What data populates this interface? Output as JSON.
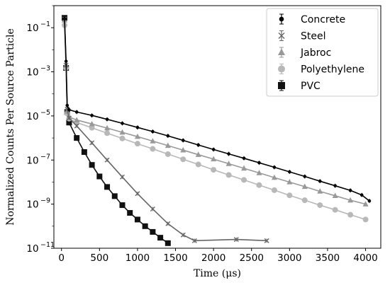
{
  "chart_data": {
    "type": "scatter",
    "xlabel": "Time (μs)",
    "ylabel": "Normalized Counts Per Source Particle",
    "xlim": [
      -100,
      4200
    ],
    "ylim": [
      1e-11,
      1
    ],
    "yscale": "log",
    "x_ticks": [
      0,
      500,
      1000,
      1500,
      2000,
      2500,
      3000,
      3500,
      4000
    ],
    "y_ticks": [
      {
        "base": "10",
        "exp": "−1",
        "value": 0.1
      },
      {
        "base": "10",
        "exp": "−3",
        "value": 0.001
      },
      {
        "base": "10",
        "exp": "−5",
        "value": 1e-05
      },
      {
        "base": "10",
        "exp": "−7",
        "value": 1e-07
      },
      {
        "base": "10",
        "exp": "−9",
        "value": 1e-09
      },
      {
        "base": "10",
        "exp": "−11",
        "value": 1e-11
      }
    ],
    "legend_position": "top-right",
    "series": [
      {
        "name": "Concrete",
        "marker": "circle",
        "color": "#000000",
        "markersize": 2.3,
        "points": [
          [
            40,
            0.25
          ],
          [
            60,
            0.003
          ],
          [
            75,
            3e-05
          ],
          [
            100,
            1.9e-05
          ],
          [
            200,
            1.5e-05
          ],
          [
            400,
            1.05e-05
          ],
          [
            600,
            7e-06
          ],
          [
            800,
            4.6e-06
          ],
          [
            1000,
            3e-06
          ],
          [
            1200,
            1.95e-06
          ],
          [
            1400,
            1.25e-06
          ],
          [
            1600,
            7.8e-07
          ],
          [
            1800,
            4.8e-07
          ],
          [
            2000,
            3e-07
          ],
          [
            2200,
            1.9e-07
          ],
          [
            2400,
            1.2e-07
          ],
          [
            2600,
            7.5e-08
          ],
          [
            2800,
            4.7e-08
          ],
          [
            3000,
            2.9e-08
          ],
          [
            3200,
            1.8e-08
          ],
          [
            3400,
            1.1e-08
          ],
          [
            3600,
            6.8e-09
          ],
          [
            3800,
            4.2e-09
          ],
          [
            3950,
            2.6e-09
          ],
          [
            4050,
            1.4e-09
          ]
        ]
      },
      {
        "name": "Steel",
        "marker": "x",
        "color": "#666666",
        "markersize": 3,
        "points": [
          [
            40,
            0.25
          ],
          [
            60,
            0.002
          ],
          [
            75,
            2e-05
          ],
          [
            100,
            8e-06
          ],
          [
            200,
            3.5e-06
          ],
          [
            400,
            6e-07
          ],
          [
            600,
            1e-07
          ],
          [
            800,
            1.7e-08
          ],
          [
            1000,
            3e-09
          ],
          [
            1200,
            6e-10
          ],
          [
            1400,
            1.3e-10
          ],
          [
            1600,
            4e-11
          ],
          [
            1750,
            2.2e-11
          ],
          [
            2300,
            2.5e-11
          ],
          [
            2700,
            2.2e-11
          ]
        ]
      },
      {
        "name": "Jabroc",
        "marker": "triangle",
        "color": "#999999",
        "markersize": 4,
        "points": [
          [
            40,
            0.22
          ],
          [
            60,
            0.002
          ],
          [
            75,
            1.6e-05
          ],
          [
            100,
            9e-06
          ],
          [
            200,
            6.5e-06
          ],
          [
            400,
            4.3e-06
          ],
          [
            600,
            2.8e-06
          ],
          [
            800,
            1.8e-06
          ],
          [
            1000,
            1.15e-06
          ],
          [
            1200,
            7.2e-07
          ],
          [
            1400,
            4.5e-07
          ],
          [
            1600,
            2.8e-07
          ],
          [
            1800,
            1.75e-07
          ],
          [
            2000,
            1.1e-07
          ],
          [
            2200,
            6.8e-08
          ],
          [
            2400,
            4.2e-08
          ],
          [
            2600,
            2.6e-08
          ],
          [
            2800,
            1.6e-08
          ],
          [
            3000,
            1e-08
          ],
          [
            3200,
            6.2e-09
          ],
          [
            3400,
            3.8e-09
          ],
          [
            3600,
            2.4e-09
          ],
          [
            3800,
            1.5e-09
          ],
          [
            4000,
            1e-09
          ]
        ]
      },
      {
        "name": "Polyethylene",
        "marker": "circle",
        "color": "#b8b8b8",
        "markersize": 4,
        "points": [
          [
            40,
            0.13
          ],
          [
            60,
            0.0015
          ],
          [
            75,
            1.3e-05
          ],
          [
            100,
            7.5e-06
          ],
          [
            200,
            5e-06
          ],
          [
            400,
            2.9e-06
          ],
          [
            600,
            1.65e-06
          ],
          [
            800,
            9.5e-07
          ],
          [
            1000,
            5.5e-07
          ],
          [
            1200,
            3.2e-07
          ],
          [
            1400,
            1.85e-07
          ],
          [
            1600,
            1.08e-07
          ],
          [
            1800,
            6.3e-08
          ],
          [
            2000,
            3.6e-08
          ],
          [
            2200,
            2.1e-08
          ],
          [
            2400,
            1.25e-08
          ],
          [
            2600,
            7.3e-09
          ],
          [
            2800,
            4.3e-09
          ],
          [
            3000,
            2.5e-09
          ],
          [
            3200,
            1.5e-09
          ],
          [
            3400,
            9e-10
          ],
          [
            3600,
            5.5e-10
          ],
          [
            3800,
            3.3e-10
          ],
          [
            4000,
            2e-10
          ]
        ]
      },
      {
        "name": "PVC",
        "marker": "square",
        "color": "#111111",
        "markersize": 4,
        "points": [
          [
            40,
            0.28
          ],
          [
            60,
            0.0015
          ],
          [
            75,
            1.5e-05
          ],
          [
            100,
            5e-06
          ],
          [
            200,
            1e-06
          ],
          [
            300,
            2.3e-07
          ],
          [
            400,
            6e-08
          ],
          [
            500,
            1.8e-08
          ],
          [
            600,
            6e-09
          ],
          [
            700,
            2.3e-09
          ],
          [
            800,
            9e-10
          ],
          [
            900,
            4e-10
          ],
          [
            1000,
            2e-10
          ],
          [
            1100,
            1e-10
          ],
          [
            1200,
            5.5e-11
          ],
          [
            1300,
            3e-11
          ],
          [
            1400,
            1.7e-11
          ]
        ]
      }
    ]
  }
}
